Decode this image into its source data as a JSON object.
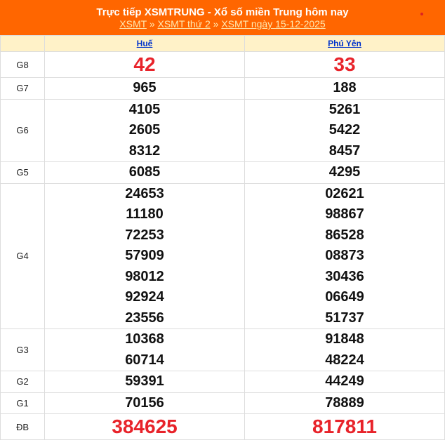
{
  "header": {
    "title": "Trực tiếp XSMTRUNG - Xổ số miền Trung hôm nay",
    "breadcrumb": [
      "XSMT",
      "XSMT thứ 2",
      "XSMT ngày 15-12-2025"
    ],
    "separator": "»",
    "bg_color": "#ff6600"
  },
  "provinces": [
    "Huế",
    "Phú Yên"
  ],
  "rows": [
    {
      "label": "G8",
      "hue": [
        "42"
      ],
      "phuyen": [
        "33"
      ],
      "highlight": true
    },
    {
      "label": "G7",
      "hue": [
        "965"
      ],
      "phuyen": [
        "188"
      ]
    },
    {
      "label": "G6",
      "hue": [
        "4105",
        "2605",
        "8312"
      ],
      "phuyen": [
        "5261",
        "5422",
        "8457"
      ]
    },
    {
      "label": "G5",
      "hue": [
        "6085"
      ],
      "phuyen": [
        "4295"
      ]
    },
    {
      "label": "G4",
      "hue": [
        "24653",
        "11180",
        "72253",
        "57909",
        "98012",
        "92924",
        "23556"
      ],
      "phuyen": [
        "02621",
        "98867",
        "86528",
        "08873",
        "30436",
        "06649",
        "51737"
      ]
    },
    {
      "label": "G3",
      "hue": [
        "10368",
        "60714"
      ],
      "phuyen": [
        "91848",
        "48224"
      ]
    },
    {
      "label": "G2",
      "hue": [
        "59391"
      ],
      "phuyen": [
        "44249"
      ]
    },
    {
      "label": "G1",
      "hue": [
        "70156"
      ],
      "phuyen": [
        "78889"
      ]
    },
    {
      "label": "ĐB",
      "hue": [
        "384625"
      ],
      "phuyen": [
        "817811"
      ],
      "highlight": true
    }
  ]
}
